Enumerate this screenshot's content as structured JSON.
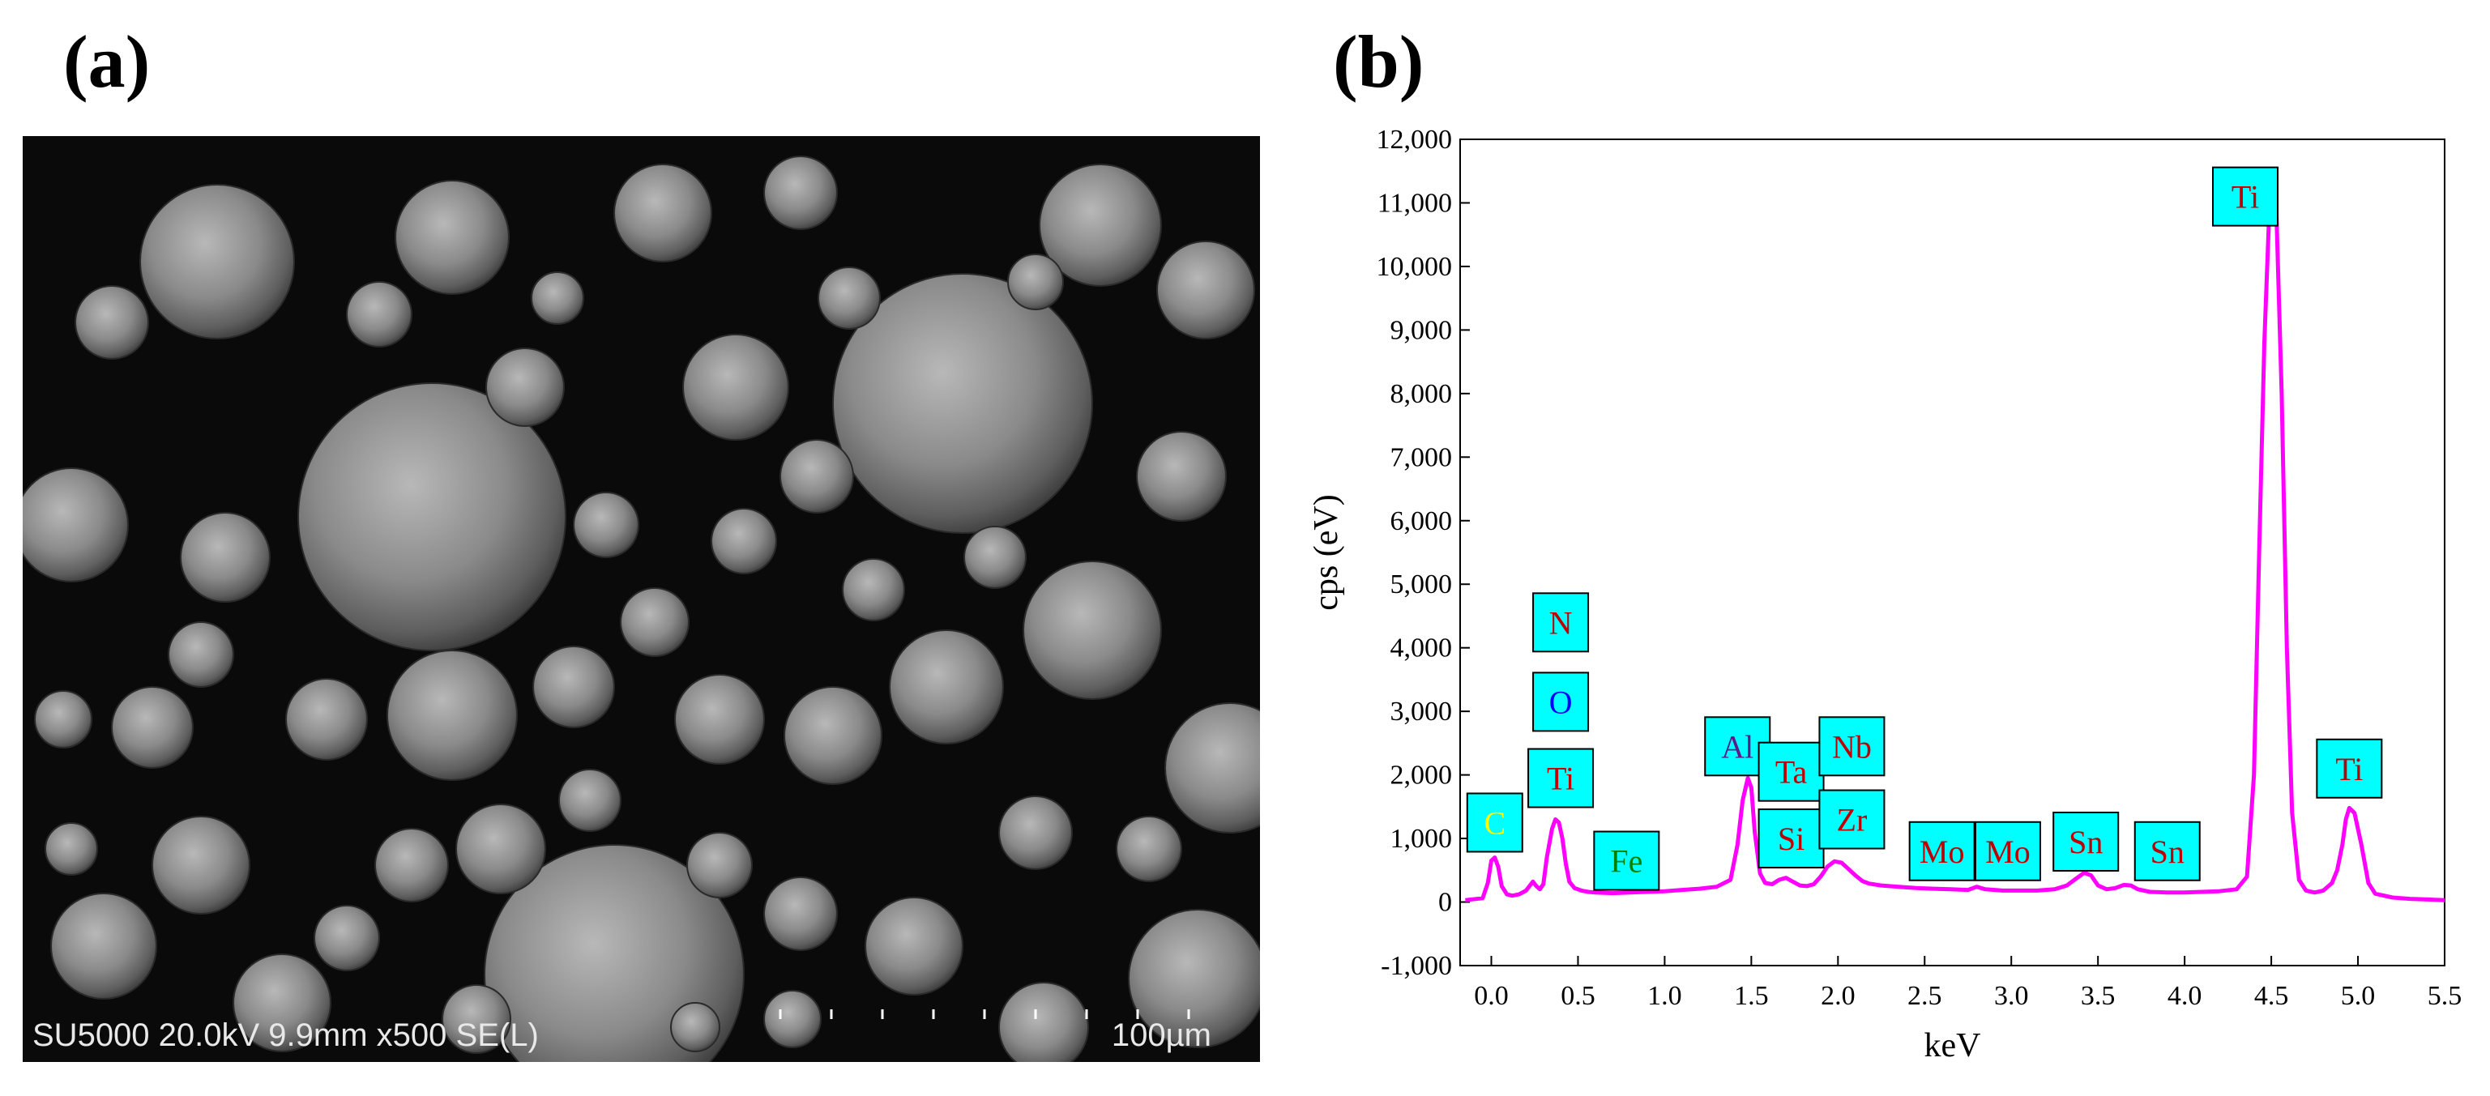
{
  "panel_a": {
    "label": "(a)",
    "sem_info": "SU5000 20.0kV 9.9mm x500 SE(L)",
    "scale_bar": "100µm"
  },
  "panel_b": {
    "label": "(b)"
  },
  "colors": {
    "spectrum_line": "#ff00ff",
    "label_box_fill": "#00ffff",
    "label_box_stroke": "#000000",
    "label_text_default": "#c00000",
    "label_text_C": "#ffff00",
    "label_text_N": "#c00000",
    "label_text_O": "#0000ff",
    "label_text_Fe": "#008000",
    "label_text_Al": "#5a1a8a"
  },
  "chart_data": {
    "type": "line",
    "title": "",
    "xlabel": "keV",
    "ylabel": "cps (eV)",
    "xlim": [
      -0.18,
      5.5
    ],
    "ylim": [
      -1000,
      12000
    ],
    "x_ticks": [
      0.0,
      0.5,
      1.0,
      1.5,
      2.0,
      2.5,
      3.0,
      3.5,
      4.0,
      4.5,
      5.0,
      5.5
    ],
    "x_tick_labels": [
      "0.0",
      "0.5",
      "1.0",
      "1.5",
      "2.0",
      "2.5",
      "3.0",
      "3.5",
      "4.0",
      "4.5",
      "5.0",
      "5.5"
    ],
    "y_ticks": [
      -1000,
      0,
      1000,
      2000,
      3000,
      4000,
      5000,
      6000,
      7000,
      8000,
      9000,
      10000,
      11000,
      12000
    ],
    "y_tick_labels": [
      "-1,000",
      "0",
      "1,000",
      "2,000",
      "3,000",
      "4,000",
      "5,000",
      "6,000",
      "7,000",
      "8,000",
      "9,000",
      "10,000",
      "11,000",
      "12,000"
    ],
    "grid": false,
    "series": [
      {
        "x": [
          -0.15,
          -0.05,
          -0.02,
          0.0,
          0.02,
          0.04,
          0.06,
          0.09,
          0.12,
          0.16,
          0.2,
          0.24,
          0.26,
          0.28,
          0.3,
          0.32,
          0.35,
          0.37,
          0.39,
          0.41,
          0.43,
          0.45,
          0.48,
          0.52,
          0.56,
          0.6,
          0.7,
          0.8,
          0.9,
          1.0,
          1.1,
          1.2,
          1.3,
          1.38,
          1.42,
          1.45,
          1.48,
          1.5,
          1.52,
          1.55,
          1.58,
          1.62,
          1.66,
          1.7,
          1.74,
          1.78,
          1.82,
          1.86,
          1.9,
          1.94,
          1.98,
          2.02,
          2.06,
          2.1,
          2.14,
          2.18,
          2.25,
          2.35,
          2.45,
          2.55,
          2.65,
          2.75,
          2.8,
          2.85,
          2.95,
          3.05,
          3.15,
          3.25,
          3.32,
          3.38,
          3.42,
          3.46,
          3.5,
          3.55,
          3.6,
          3.65,
          3.69,
          3.73,
          3.8,
          3.9,
          4.0,
          4.1,
          4.2,
          4.3,
          4.36,
          4.4,
          4.43,
          4.46,
          4.49,
          4.51,
          4.53,
          4.56,
          4.59,
          4.62,
          4.66,
          4.7,
          4.75,
          4.8,
          4.85,
          4.88,
          4.91,
          4.93,
          4.95,
          4.98,
          5.02,
          5.06,
          5.1,
          5.2,
          5.3,
          5.4,
          5.5
        ],
        "y": [
          30,
          60,
          300,
          650,
          700,
          550,
          250,
          120,
          100,
          120,
          180,
          320,
          250,
          200,
          280,
          700,
          1150,
          1300,
          1250,
          1000,
          600,
          320,
          220,
          180,
          160,
          150,
          140,
          150,
          160,
          170,
          190,
          210,
          240,
          350,
          900,
          1600,
          1950,
          1800,
          1100,
          450,
          300,
          280,
          350,
          380,
          320,
          260,
          250,
          280,
          400,
          560,
          640,
          620,
          520,
          420,
          330,
          290,
          260,
          240,
          220,
          210,
          200,
          190,
          240,
          200,
          180,
          180,
          180,
          200,
          260,
          380,
          460,
          420,
          260,
          200,
          220,
          270,
          260,
          200,
          160,
          150,
          150,
          160,
          170,
          200,
          400,
          2000,
          5500,
          8800,
          11000,
          11300,
          10800,
          8000,
          4000,
          1400,
          350,
          180,
          150,
          180,
          300,
          500,
          900,
          1300,
          1480,
          1400,
          900,
          300,
          130,
          70,
          50,
          40,
          30
        ]
      }
    ],
    "peak_labels": [
      {
        "text": "C",
        "x": 0.02,
        "y": 1250
      },
      {
        "text": "N",
        "x": 0.4,
        "y": 4400
      },
      {
        "text": "O",
        "x": 0.4,
        "y": 3150
      },
      {
        "text": "Ti",
        "x": 0.4,
        "y": 1950
      },
      {
        "text": "Fe",
        "x": 0.78,
        "y": 650
      },
      {
        "text": "Al",
        "x": 1.42,
        "y": 2450
      },
      {
        "text": "Ta",
        "x": 1.73,
        "y": 2050
      },
      {
        "text": "Si",
        "x": 1.73,
        "y": 1000
      },
      {
        "text": "Nb",
        "x": 2.08,
        "y": 2450
      },
      {
        "text": "Zr",
        "x": 2.08,
        "y": 1300
      },
      {
        "text": "Mo",
        "x": 2.6,
        "y": 800
      },
      {
        "text": "Mo",
        "x": 2.98,
        "y": 800
      },
      {
        "text": "Sn",
        "x": 3.43,
        "y": 950
      },
      {
        "text": "Sn",
        "x": 3.9,
        "y": 800
      },
      {
        "text": "Ti",
        "x": 4.35,
        "y": 11100
      },
      {
        "text": "Ti",
        "x": 4.95,
        "y": 2100
      }
    ]
  }
}
